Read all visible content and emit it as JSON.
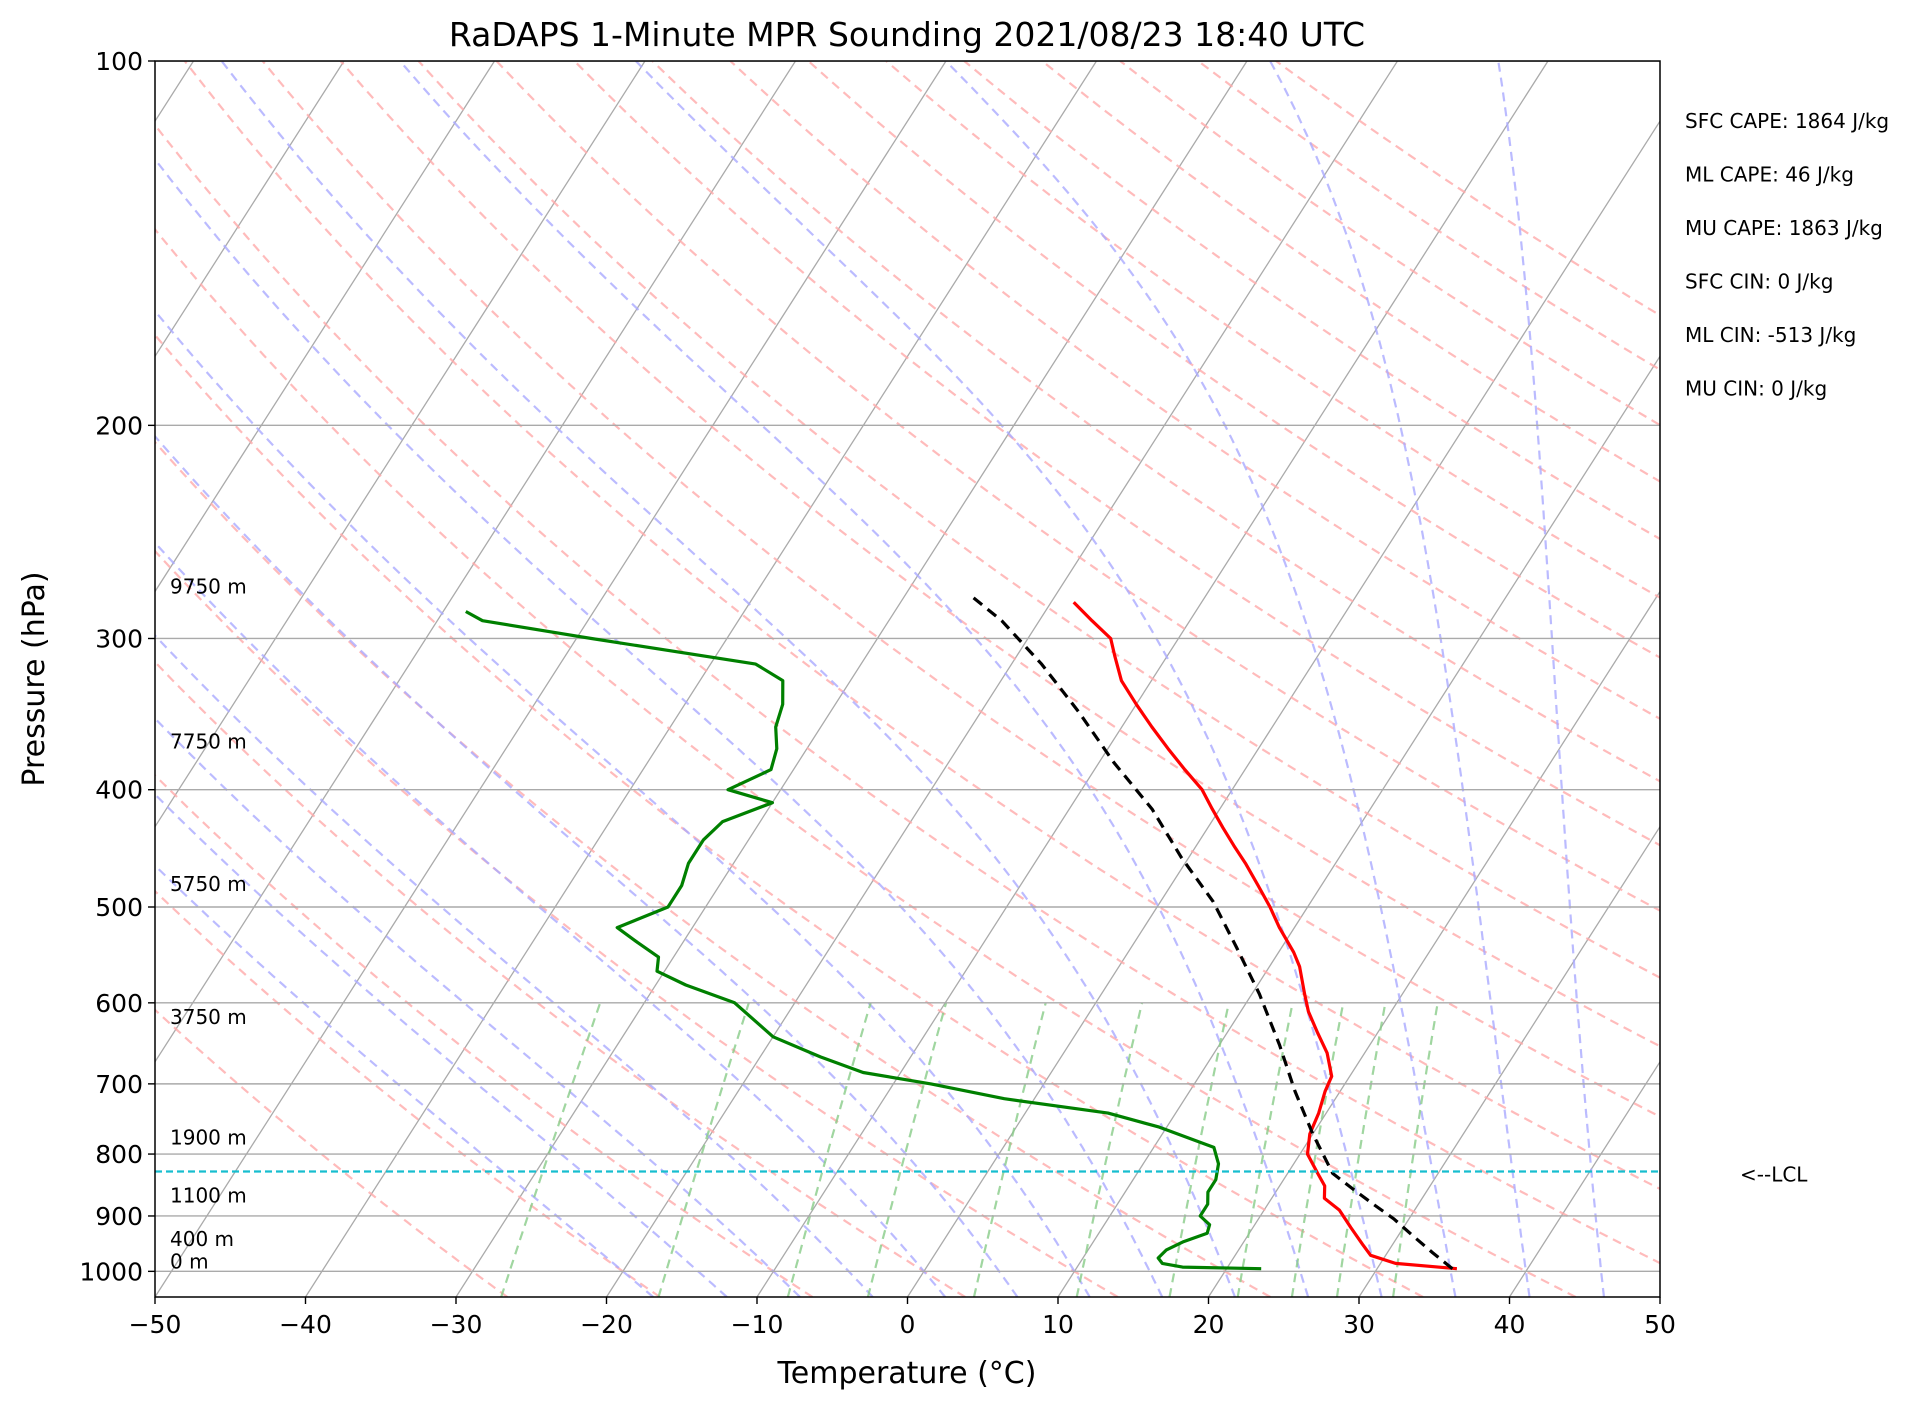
{
  "chart_data": {
    "type": "line",
    "title": "RaDAPS 1-Minute MPR Sounding 2021/08/23 18:40 UTC",
    "xlabel": "Temperature (°C)",
    "ylabel": "Pressure (hPa)",
    "xlim": [
      -50,
      50
    ],
    "ylim": [
      1050,
      100
    ],
    "y_scale": "log",
    "skew_t": true,
    "x_ticks": [
      "−50",
      "−40",
      "−30",
      "−20",
      "−10",
      "0",
      "10",
      "20",
      "30",
      "40",
      "50"
    ],
    "y_ticks": [
      {
        "p": 100,
        "label": "100"
      },
      {
        "p": 200,
        "label": "200"
      },
      {
        "p": 300,
        "label": "300"
      },
      {
        "p": 400,
        "label": "400"
      },
      {
        "p": 500,
        "label": "500"
      },
      {
        "p": 600,
        "label": "600"
      },
      {
        "p": 700,
        "label": "700"
      },
      {
        "p": 800,
        "label": "800"
      },
      {
        "p": 900,
        "label": "900"
      },
      {
        "p": 1000,
        "label": "1000"
      }
    ],
    "series": [
      {
        "role": "temperature",
        "color": "#ff0000",
        "points": [
          [
            35.3,
            995
          ],
          [
            31.0,
            985
          ],
          [
            29.0,
            970
          ],
          [
            28.0,
            950
          ],
          [
            26.5,
            920
          ],
          [
            25.0,
            890
          ],
          [
            23.5,
            870
          ],
          [
            23.0,
            850
          ],
          [
            22.0,
            830
          ],
          [
            20.5,
            800
          ],
          [
            19.8,
            770
          ],
          [
            19.5,
            740
          ],
          [
            19.0,
            710
          ],
          [
            18.8,
            690
          ],
          [
            17.5,
            660
          ],
          [
            16.0,
            635
          ],
          [
            14.5,
            610
          ],
          [
            13.5,
            590
          ],
          [
            12.0,
            560
          ],
          [
            11.0,
            545
          ],
          [
            9.0,
            520
          ],
          [
            7.5,
            500
          ],
          [
            5.8,
            480
          ],
          [
            4.0,
            460
          ],
          [
            2.5,
            445
          ],
          [
            1.0,
            430
          ],
          [
            -0.5,
            415
          ],
          [
            -2.0,
            400
          ],
          [
            -4.0,
            385
          ],
          [
            -6.0,
            370
          ],
          [
            -8.0,
            355
          ],
          [
            -10.0,
            340
          ],
          [
            -12.0,
            325
          ],
          [
            -13.5,
            310
          ],
          [
            -14.5,
            300
          ],
          [
            -16.5,
            290
          ],
          [
            -18.5,
            280
          ]
        ]
      },
      {
        "role": "dewpoint",
        "color": "#008000",
        "points": [
          [
            22.3,
            995
          ],
          [
            17.0,
            992
          ],
          [
            15.5,
            985
          ],
          [
            15.0,
            975
          ],
          [
            15.2,
            960
          ],
          [
            16.0,
            945
          ],
          [
            17.2,
            930
          ],
          [
            17.0,
            915
          ],
          [
            16.0,
            900
          ],
          [
            16.0,
            880
          ],
          [
            15.5,
            860
          ],
          [
            15.5,
            840
          ],
          [
            15.0,
            815
          ],
          [
            14.0,
            790
          ],
          [
            9.5,
            760
          ],
          [
            5.5,
            740
          ],
          [
            -2.0,
            720
          ],
          [
            -7.5,
            700
          ],
          [
            -12.5,
            685
          ],
          [
            -16.0,
            665
          ],
          [
            -20.0,
            640
          ],
          [
            -24.0,
            600
          ],
          [
            -28.0,
            580
          ],
          [
            -30.5,
            565
          ],
          [
            -31.0,
            550
          ],
          [
            -33.0,
            535
          ],
          [
            -35.0,
            520
          ],
          [
            -32.5,
            500
          ],
          [
            -32.5,
            480
          ],
          [
            -33.0,
            460
          ],
          [
            -33.0,
            440
          ],
          [
            -32.5,
            425
          ],
          [
            -30.0,
            410
          ],
          [
            -33.5,
            400
          ],
          [
            -31.5,
            385
          ],
          [
            -32.0,
            370
          ],
          [
            -33.0,
            355
          ],
          [
            -33.5,
            340
          ],
          [
            -34.5,
            325
          ],
          [
            -37.0,
            315
          ],
          [
            -49.0,
            300
          ],
          [
            -57.0,
            290
          ],
          [
            -58.5,
            285
          ]
        ]
      },
      {
        "role": "parcel",
        "color": "#000000",
        "dashed": true,
        "points": [
          [
            35.0,
            995
          ],
          [
            33.0,
            965
          ],
          [
            31.0,
            935
          ],
          [
            29.0,
            905
          ],
          [
            27.0,
            880
          ],
          [
            25.0,
            855
          ],
          [
            23.0,
            830
          ],
          [
            20.0,
            770
          ],
          [
            17.0,
            710
          ],
          [
            14.0,
            650
          ],
          [
            10.5,
            590
          ],
          [
            7.0,
            540
          ],
          [
            3.5,
            495
          ],
          [
            -0.5,
            455
          ],
          [
            -4.5,
            415
          ],
          [
            -9.0,
            380
          ],
          [
            -13.5,
            345
          ],
          [
            -18.0,
            315
          ],
          [
            -22.5,
            290
          ],
          [
            -25.5,
            277
          ]
        ]
      }
    ],
    "lcl_pressure": 827,
    "lcl_label": "<--LCL",
    "height_labels": [
      {
        "p": 277,
        "text": "9750 m"
      },
      {
        "p": 372,
        "text": "7750 m"
      },
      {
        "p": 488,
        "text": "5750 m"
      },
      {
        "p": 628,
        "text": "3750 m"
      },
      {
        "p": 790,
        "text": "1900 m"
      },
      {
        "p": 882,
        "text": "1100 m"
      },
      {
        "p": 958,
        "text": "400 m"
      },
      {
        "p": 1000,
        "text": "0 m"
      }
    ],
    "stats": [
      "SFC CAPE: 1864 J/kg",
      "ML CAPE: 46 J/kg",
      "MU CAPE: 1863 J/kg",
      "SFC CIN: 0 J/kg",
      "ML CIN: -513 J/kg",
      "MU CIN: 0 J/kg"
    ],
    "grid": true,
    "background_lines": {
      "isotherms_color": "#aaaaaa",
      "dry_adiabats_color": "#ffaaaa",
      "moist_adiabats_color": "#aaaaff",
      "mixing_ratio_color": "#88cc88"
    }
  }
}
